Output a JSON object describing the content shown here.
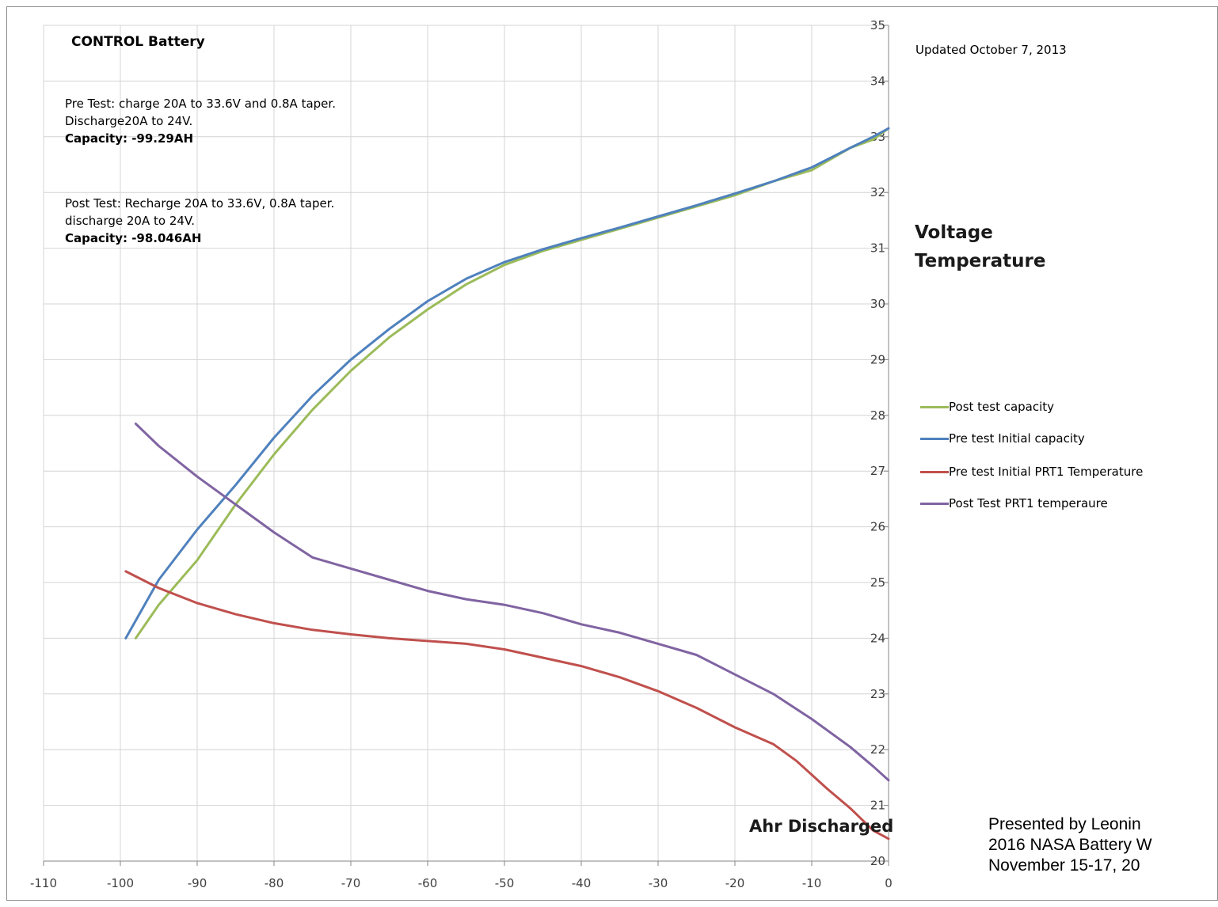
{
  "chart_data": {
    "type": "line",
    "title": "CONTROL  Battery",
    "updated": "Updated October 7, 2013",
    "xlabel": "Ahr Discharged",
    "ylabel": [
      "Voltage",
      "Temperature"
    ],
    "xlim": [
      -110,
      0
    ],
    "ylim": [
      20,
      35
    ],
    "x_ticks": [
      "-110",
      "-100",
      "-90",
      "-80",
      "-70",
      "-60",
      "-50",
      "-40",
      "-30",
      "-20",
      "-10",
      "0"
    ],
    "y_ticks": [
      "20",
      "21",
      "22",
      "23",
      "24",
      "25",
      "26",
      "27",
      "28",
      "29",
      "30",
      "31",
      "32",
      "33",
      "34",
      "35"
    ],
    "grid": true,
    "legend_position": "right",
    "annotations": {
      "pre_test_line1": "Pre Test:    charge 20A to 33.6V and 0.8A taper.",
      "pre_test_line2": "Discharge20A to 24V.",
      "pre_test_capacity": "Capacity:  -99.29AH",
      "post_test_line1": "Post Test: Recharge 20A to 33.6V, 0.8A taper.",
      "post_test_line2": "discharge 20A to 24V.",
      "post_test_capacity": "Capacity:  -98.046AH"
    },
    "series": [
      {
        "name": "Post test capacity",
        "color": "#9bbb59",
        "x": [
          0,
          -2,
          -5,
          -10,
          -15,
          -20,
          -25,
          -30,
          -35,
          -40,
          -45,
          -50,
          -55,
          -60,
          -65,
          -70,
          -75,
          -80,
          -85,
          -90,
          -95,
          -98
        ],
        "y": [
          33.15,
          32.95,
          32.8,
          32.4,
          32.2,
          31.95,
          31.75,
          31.55,
          31.35,
          31.15,
          30.95,
          30.7,
          30.35,
          29.9,
          29.4,
          28.8,
          28.1,
          27.3,
          26.4,
          25.4,
          24.6,
          24.0
        ]
      },
      {
        "name": "Pre test Initial capacity",
        "color": "#4f81bd",
        "x": [
          0,
          -2,
          -5,
          -10,
          -15,
          -20,
          -25,
          -30,
          -35,
          -40,
          -45,
          -50,
          -55,
          -60,
          -65,
          -70,
          -75,
          -80,
          -85,
          -90,
          -95,
          -99.3
        ],
        "y": [
          33.15,
          33.0,
          32.8,
          32.45,
          32.2,
          31.98,
          31.77,
          31.57,
          31.37,
          31.18,
          30.98,
          30.75,
          30.45,
          30.05,
          29.55,
          29.0,
          28.35,
          27.6,
          26.75,
          25.95,
          25.05,
          24.0
        ]
      },
      {
        "name": "Pre test Initial PRT1 Temperature",
        "color": "#c0504d",
        "x": [
          0,
          -2,
          -5,
          -8,
          -10,
          -12,
          -15,
          -20,
          -25,
          -30,
          -35,
          -40,
          -45,
          -50,
          -55,
          -60,
          -65,
          -70,
          -75,
          -80,
          -85,
          -90,
          -95,
          -99.3
        ],
        "y": [
          20.4,
          20.55,
          20.95,
          21.3,
          21.55,
          21.8,
          22.1,
          22.4,
          22.75,
          23.05,
          23.3,
          23.5,
          23.65,
          23.8,
          23.9,
          23.95,
          24.0,
          24.07,
          24.15,
          24.27,
          24.43,
          24.63,
          24.9,
          25.2
        ]
      },
      {
        "name": "Post Test PRT1 temperaure",
        "color": "#8064a2",
        "x": [
          0,
          -2,
          -5,
          -10,
          -15,
          -20,
          -25,
          -30,
          -35,
          -40,
          -45,
          -50,
          -55,
          -60,
          -65,
          -70,
          -75,
          -80,
          -85,
          -90,
          -95,
          -98
        ],
        "y": [
          21.45,
          21.7,
          22.05,
          22.55,
          23.0,
          23.35,
          23.7,
          23.9,
          24.1,
          24.25,
          24.45,
          24.6,
          24.7,
          24.85,
          25.05,
          25.25,
          25.45,
          25.9,
          26.4,
          26.9,
          27.45,
          27.85
        ]
      }
    ]
  },
  "footer": {
    "line1": "Presented by Leonin",
    "line2": "2016 NASA Battery W",
    "line3": "November 15-17, 20"
  }
}
